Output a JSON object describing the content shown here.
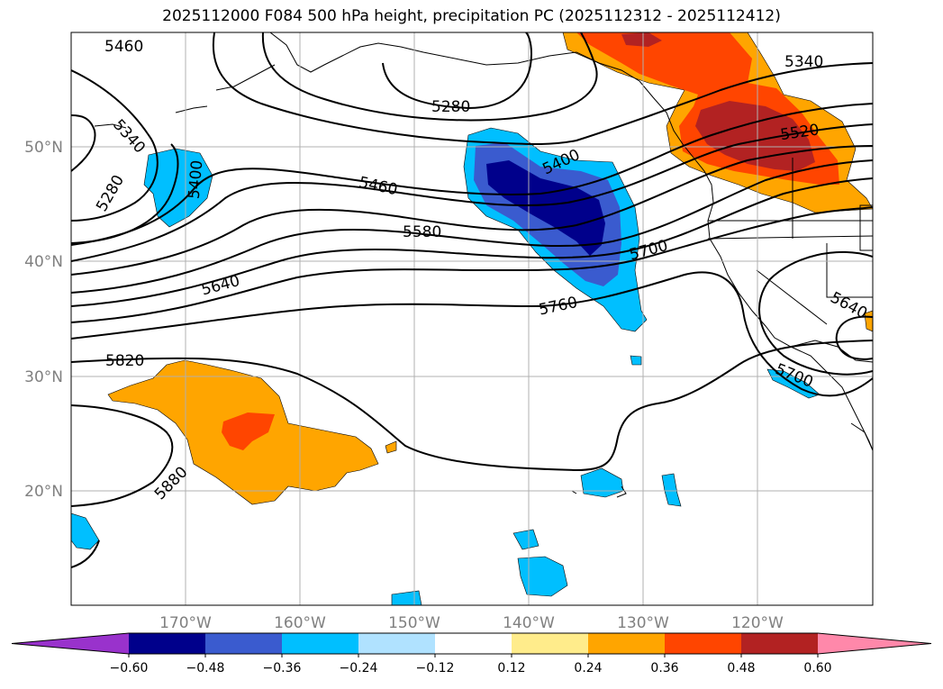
{
  "title": "2025112000 F084 500 hPa height, precipitation PC (2025112312 - 2025112412)",
  "lon_ticks": [
    "170°W",
    "160°W",
    "150°W",
    "140°W",
    "130°W",
    "120°W"
  ],
  "lat_ticks": [
    "50°N",
    "40°N",
    "30°N",
    "20°N"
  ],
  "contour_labels": [
    "5460",
    "5340",
    "5280",
    "5400",
    "5280",
    "5400",
    "5460",
    "5580",
    "5640",
    "5700",
    "5760",
    "5340",
    "5520",
    "5640",
    "5700",
    "5820",
    "5880"
  ],
  "colorbar": {
    "ticks": [
      "−0.60",
      "−0.48",
      "−0.36",
      "−0.24",
      "−0.12",
      "0.12",
      "0.24",
      "0.36",
      "0.48",
      "0.60"
    ],
    "colors": [
      "#9932cc",
      "#00008b",
      "#3a5bcf",
      "#00bfff",
      "#b0e2ff",
      "#ffffff",
      "#ffec8b",
      "#ffa500",
      "#ff4500",
      "#b22222",
      "#ff88aa"
    ]
  }
}
